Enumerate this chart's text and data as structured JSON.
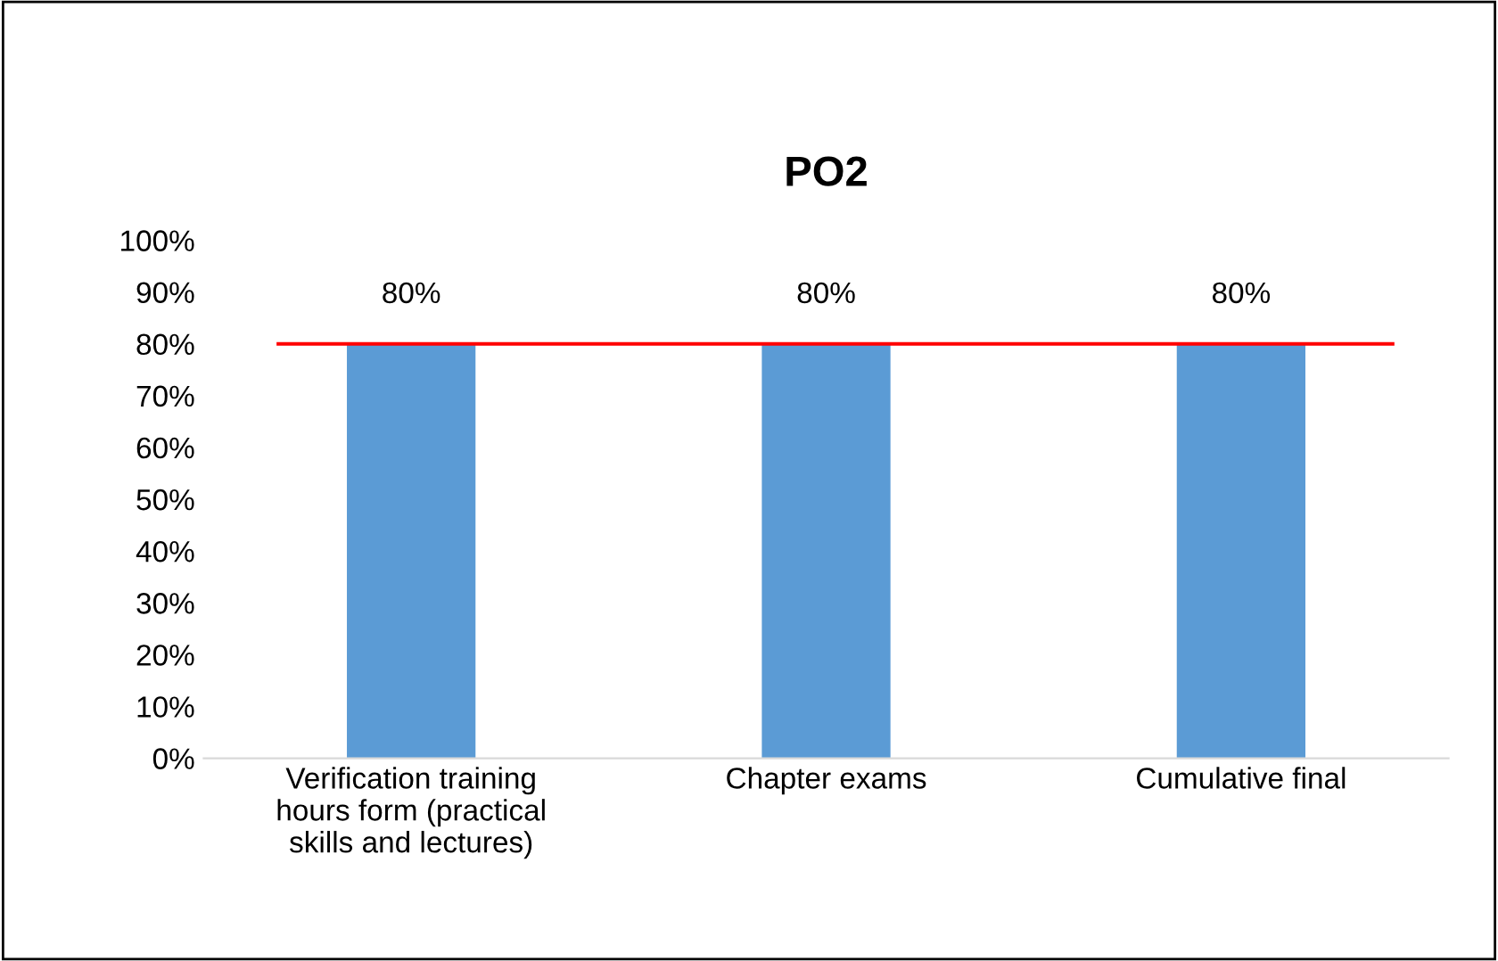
{
  "chart_data": {
    "type": "bar",
    "title": "PO2",
    "categories": [
      "Verification training hours form (practical skills and lectures)",
      "Chapter exams",
      "Cumulative final"
    ],
    "series": [
      {
        "color": "#5b9bd5",
        "values": [
          80,
          80,
          80
        ]
      }
    ],
    "value_labels": [
      "80%",
      "80%",
      "80%"
    ],
    "ylim": [
      0,
      100
    ],
    "yticks": [
      {
        "value": 0,
        "label": "0%"
      },
      {
        "value": 10,
        "label": "10%"
      },
      {
        "value": 20,
        "label": "20%"
      },
      {
        "value": 30,
        "label": "30%"
      },
      {
        "value": 40,
        "label": "40%"
      },
      {
        "value": 50,
        "label": "50%"
      },
      {
        "value": 60,
        "label": "60%"
      },
      {
        "value": 70,
        "label": "70%"
      },
      {
        "value": 80,
        "label": "80%"
      },
      {
        "value": 90,
        "label": "90%"
      },
      {
        "value": 100,
        "label": "100%"
      }
    ],
    "ref_lines": [
      {
        "axis": "y",
        "value": 80,
        "color": "#ff0000"
      }
    ],
    "grid": false,
    "legend": false
  }
}
